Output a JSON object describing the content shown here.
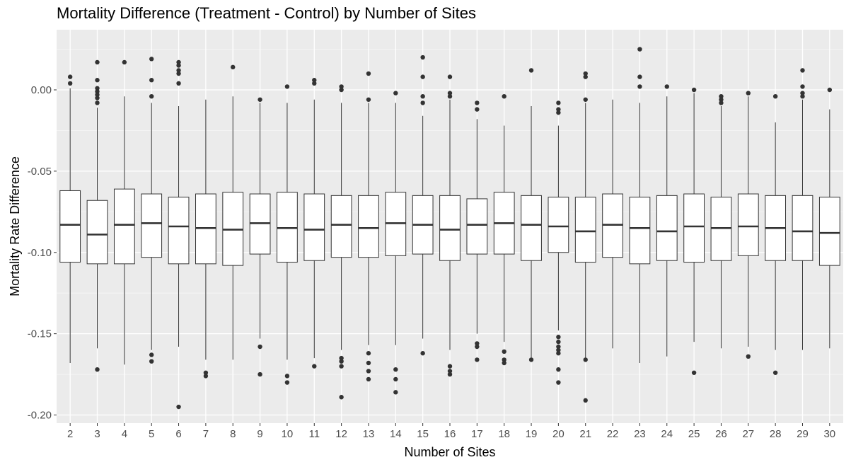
{
  "chart_data": {
    "type": "boxplot",
    "title": "Mortality Difference (Treatment - Control) by Number of Sites",
    "xlabel": "Number of Sites",
    "ylabel": "Mortality Rate Difference",
    "ylim": [
      -0.205,
      0.037
    ],
    "y_ticks": [
      "0.00",
      "-0.05",
      "-0.10",
      "-0.15",
      "-0.20"
    ],
    "y_tick_values": [
      0,
      -0.05,
      -0.1,
      -0.15,
      -0.2
    ],
    "grid": true,
    "colors": {
      "panel": "#ebebeb",
      "grid_major": "#ffffff",
      "grid_minor": "#f5f5f5",
      "box_fill": "#ffffff",
      "box_line": "#333333",
      "tick_text": "#4d4d4d"
    },
    "categories": [
      "2",
      "3",
      "4",
      "5",
      "6",
      "7",
      "8",
      "9",
      "10",
      "11",
      "12",
      "13",
      "14",
      "15",
      "16",
      "17",
      "18",
      "19",
      "20",
      "21",
      "22",
      "23",
      "24",
      "25",
      "26",
      "27",
      "28",
      "29",
      "30"
    ],
    "boxes": [
      {
        "x": "2",
        "q1": -0.106,
        "median": -0.083,
        "q3": -0.062,
        "whisker_low": -0.168,
        "whisker_high": 0.001,
        "outliers": [
          0.008,
          0.004
        ]
      },
      {
        "x": "3",
        "q1": -0.107,
        "median": -0.089,
        "q3": -0.068,
        "whisker_low": -0.159,
        "whisker_high": -0.011,
        "outliers": [
          0.017,
          0.006,
          0.001,
          -0.001,
          -0.003,
          -0.005,
          -0.008,
          -0.172
        ]
      },
      {
        "x": "4",
        "q1": -0.107,
        "median": -0.083,
        "q3": -0.061,
        "whisker_low": -0.169,
        "whisker_high": -0.004,
        "outliers": [
          0.017
        ]
      },
      {
        "x": "5",
        "q1": -0.103,
        "median": -0.082,
        "q3": -0.064,
        "whisker_low": -0.16,
        "whisker_high": -0.008,
        "outliers": [
          0.019,
          0.006,
          -0.004,
          -0.163,
          -0.167
        ]
      },
      {
        "x": "6",
        "q1": -0.107,
        "median": -0.084,
        "q3": -0.066,
        "whisker_low": -0.158,
        "whisker_high": -0.01,
        "outliers": [
          0.017,
          0.015,
          0.012,
          0.01,
          0.004,
          -0.195
        ]
      },
      {
        "x": "7",
        "q1": -0.107,
        "median": -0.085,
        "q3": -0.064,
        "whisker_low": -0.166,
        "whisker_high": -0.006,
        "outliers": [
          -0.174,
          -0.176
        ]
      },
      {
        "x": "8",
        "q1": -0.108,
        "median": -0.086,
        "q3": -0.063,
        "whisker_low": -0.166,
        "whisker_high": -0.004,
        "outliers": [
          0.014
        ]
      },
      {
        "x": "9",
        "q1": -0.101,
        "median": -0.082,
        "q3": -0.064,
        "whisker_low": -0.153,
        "whisker_high": -0.008,
        "outliers": [
          -0.006,
          -0.158,
          -0.175
        ]
      },
      {
        "x": "10",
        "q1": -0.106,
        "median": -0.085,
        "q3": -0.063,
        "whisker_low": -0.166,
        "whisker_high": -0.008,
        "outliers": [
          0.002,
          -0.176,
          -0.18
        ]
      },
      {
        "x": "11",
        "q1": -0.105,
        "median": -0.086,
        "q3": -0.064,
        "whisker_low": -0.165,
        "whisker_high": -0.006,
        "outliers": [
          0.006,
          0.004,
          -0.17
        ]
      },
      {
        "x": "12",
        "q1": -0.103,
        "median": -0.083,
        "q3": -0.065,
        "whisker_low": -0.16,
        "whisker_high": -0.008,
        "outliers": [
          0.002,
          0.0,
          -0.165,
          -0.167,
          -0.17,
          -0.189
        ]
      },
      {
        "x": "13",
        "q1": -0.103,
        "median": -0.085,
        "q3": -0.065,
        "whisker_low": -0.157,
        "whisker_high": -0.008,
        "outliers": [
          0.01,
          -0.006,
          -0.162,
          -0.168,
          -0.173,
          -0.178
        ]
      },
      {
        "x": "14",
        "q1": -0.102,
        "median": -0.082,
        "q3": -0.063,
        "whisker_low": -0.157,
        "whisker_high": -0.008,
        "outliers": [
          -0.002,
          -0.172,
          -0.178,
          -0.186
        ]
      },
      {
        "x": "15",
        "q1": -0.101,
        "median": -0.083,
        "q3": -0.065,
        "whisker_low": -0.153,
        "whisker_high": -0.016,
        "outliers": [
          0.02,
          0.008,
          -0.004,
          -0.008,
          -0.162
        ]
      },
      {
        "x": "16",
        "q1": -0.105,
        "median": -0.086,
        "q3": -0.065,
        "whisker_low": -0.16,
        "whisker_high": -0.006,
        "outliers": [
          0.008,
          -0.002,
          -0.004,
          -0.17,
          -0.173,
          -0.175
        ]
      },
      {
        "x": "17",
        "q1": -0.101,
        "median": -0.083,
        "q3": -0.067,
        "whisker_low": -0.15,
        "whisker_high": -0.018,
        "outliers": [
          -0.008,
          -0.012,
          -0.156,
          -0.158,
          -0.166
        ]
      },
      {
        "x": "18",
        "q1": -0.101,
        "median": -0.082,
        "q3": -0.063,
        "whisker_low": -0.155,
        "whisker_high": -0.022,
        "outliers": [
          -0.004,
          -0.161,
          -0.166,
          -0.168
        ]
      },
      {
        "x": "19",
        "q1": -0.105,
        "median": -0.083,
        "q3": -0.065,
        "whisker_low": -0.165,
        "whisker_high": -0.01,
        "outliers": [
          0.012,
          -0.166
        ]
      },
      {
        "x": "20",
        "q1": -0.1,
        "median": -0.084,
        "q3": -0.066,
        "whisker_low": -0.148,
        "whisker_high": -0.022,
        "outliers": [
          -0.008,
          -0.012,
          -0.014,
          -0.152,
          -0.155,
          -0.158,
          -0.16,
          -0.162,
          -0.172,
          -0.18
        ]
      },
      {
        "x": "21",
        "q1": -0.106,
        "median": -0.087,
        "q3": -0.066,
        "whisker_low": -0.165,
        "whisker_high": -0.008,
        "outliers": [
          0.01,
          0.008,
          -0.006,
          -0.166,
          -0.191
        ]
      },
      {
        "x": "22",
        "q1": -0.103,
        "median": -0.083,
        "q3": -0.064,
        "whisker_low": -0.159,
        "whisker_high": -0.006,
        "outliers": []
      },
      {
        "x": "23",
        "q1": -0.107,
        "median": -0.085,
        "q3": -0.066,
        "whisker_low": -0.168,
        "whisker_high": -0.008,
        "outliers": [
          0.025,
          0.008,
          0.002
        ]
      },
      {
        "x": "24",
        "q1": -0.105,
        "median": -0.087,
        "q3": -0.065,
        "whisker_low": -0.164,
        "whisker_high": -0.004,
        "outliers": [
          0.002
        ]
      },
      {
        "x": "25",
        "q1": -0.106,
        "median": -0.084,
        "q3": -0.064,
        "whisker_low": -0.155,
        "whisker_high": -0.002,
        "outliers": [
          0.0,
          -0.174
        ]
      },
      {
        "x": "26",
        "q1": -0.105,
        "median": -0.085,
        "q3": -0.066,
        "whisker_low": -0.159,
        "whisker_high": -0.01,
        "outliers": [
          -0.004,
          -0.006,
          -0.008
        ]
      },
      {
        "x": "27",
        "q1": -0.102,
        "median": -0.084,
        "q3": -0.064,
        "whisker_low": -0.158,
        "whisker_high": -0.004,
        "outliers": [
          -0.002,
          -0.164
        ]
      },
      {
        "x": "28",
        "q1": -0.105,
        "median": -0.085,
        "q3": -0.065,
        "whisker_low": -0.16,
        "whisker_high": -0.02,
        "outliers": [
          -0.004,
          -0.174
        ]
      },
      {
        "x": "29",
        "q1": -0.105,
        "median": -0.087,
        "q3": -0.065,
        "whisker_low": -0.16,
        "whisker_high": -0.006,
        "outliers": [
          0.012,
          0.002,
          -0.002,
          -0.004
        ]
      },
      {
        "x": "30",
        "q1": -0.108,
        "median": -0.088,
        "q3": -0.066,
        "whisker_low": -0.159,
        "whisker_high": -0.012,
        "outliers": [
          0.0
        ]
      }
    ]
  }
}
